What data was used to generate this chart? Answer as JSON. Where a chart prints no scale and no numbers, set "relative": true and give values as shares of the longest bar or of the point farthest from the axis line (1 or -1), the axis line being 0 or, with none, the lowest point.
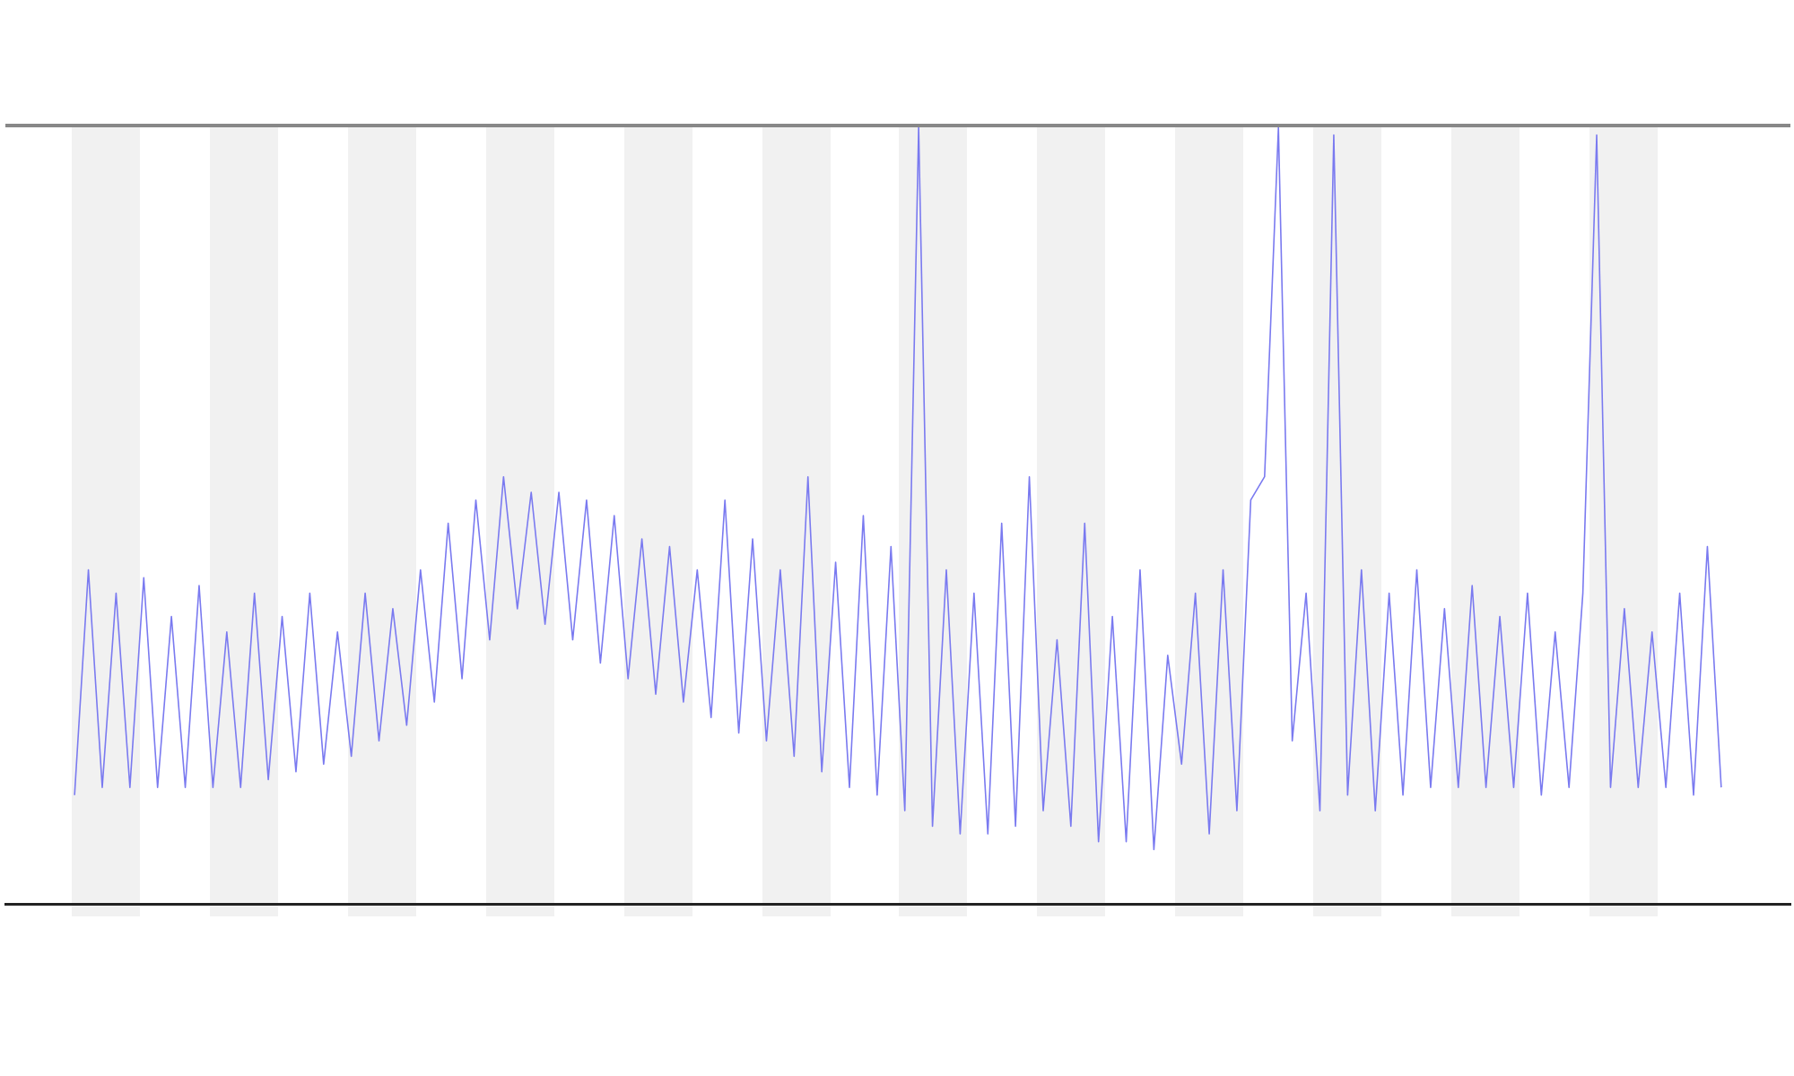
{
  "chart_data": {
    "type": "line",
    "relative": true,
    "categories": [
      null,
      null,
      null,
      null,
      null,
      null,
      null,
      null,
      null,
      null,
      null,
      null,
      null,
      null,
      null,
      null,
      null,
      null,
      null,
      null,
      null,
      null,
      null,
      null,
      null,
      null,
      null,
      null,
      null,
      null,
      null,
      null,
      null,
      null,
      null,
      null,
      null,
      null,
      null,
      null,
      null,
      null,
      null,
      null,
      null,
      null,
      null,
      null,
      null,
      null,
      null,
      null,
      null,
      null,
      null,
      null,
      null,
      null,
      null,
      null,
      null,
      null,
      null,
      null,
      null,
      null,
      null,
      null,
      null,
      null,
      null,
      null,
      null,
      null,
      null,
      null,
      null,
      null,
      null,
      null,
      null,
      null,
      null,
      null,
      null,
      null,
      null,
      null,
      null,
      null,
      null,
      null,
      null,
      null,
      null,
      null,
      null,
      null,
      null,
      null,
      null,
      null,
      null,
      null,
      null,
      null,
      null,
      null,
      null,
      null,
      null,
      null,
      null,
      null,
      null,
      null,
      null,
      null,
      null,
      null,
      null,
      null,
      null,
      null,
      null,
      null,
      null,
      null,
      null,
      null
    ],
    "series": [
      {
        "color": "#7a7af0",
        "values": [
          null,
          null,
          null,
          null,
          null,
          0.14,
          0.43,
          0.15,
          0.4,
          0.15,
          0.42,
          0.15,
          0.37,
          0.15,
          0.41,
          0.15,
          0.35,
          0.15,
          0.4,
          0.16,
          0.37,
          0.17,
          0.4,
          0.18,
          0.35,
          0.19,
          0.4,
          0.21,
          0.38,
          0.23,
          0.43,
          0.26,
          0.49,
          0.29,
          0.52,
          0.34,
          0.55,
          0.38,
          0.53,
          0.36,
          0.53,
          0.34,
          0.52,
          0.31,
          0.5,
          0.29,
          0.47,
          0.27,
          0.46,
          0.26,
          0.43,
          0.24,
          0.52,
          0.22,
          0.47,
          0.21,
          0.43,
          0.19,
          0.55,
          0.17,
          0.44,
          0.15,
          0.5,
          0.14,
          0.46,
          0.12,
          1,
          0.1,
          0.43,
          0.09,
          0.4,
          0.09,
          0.49,
          0.1,
          0.55,
          0.12,
          0.34,
          0.1,
          0.49,
          0.08,
          0.37,
          0.08,
          0.43,
          0.07,
          0.32,
          0.18,
          0.4,
          0.09,
          0.43,
          0.12,
          0.52,
          0.55,
          1,
          0.21,
          0.4,
          0.12,
          0.99,
          0.14,
          0.43,
          0.12,
          0.4,
          0.14,
          0.43,
          0.15,
          0.38,
          0.15,
          0.41,
          0.15,
          0.37,
          0.15,
          0.4,
          0.14,
          0.35,
          0.15,
          0.4,
          0.99,
          0.15,
          0.38,
          0.15,
          0.35,
          0.15,
          0.4,
          0.14,
          0.46,
          0.15,
          null,
          null,
          null,
          null,
          null
        ]
      }
    ]
  }
}
